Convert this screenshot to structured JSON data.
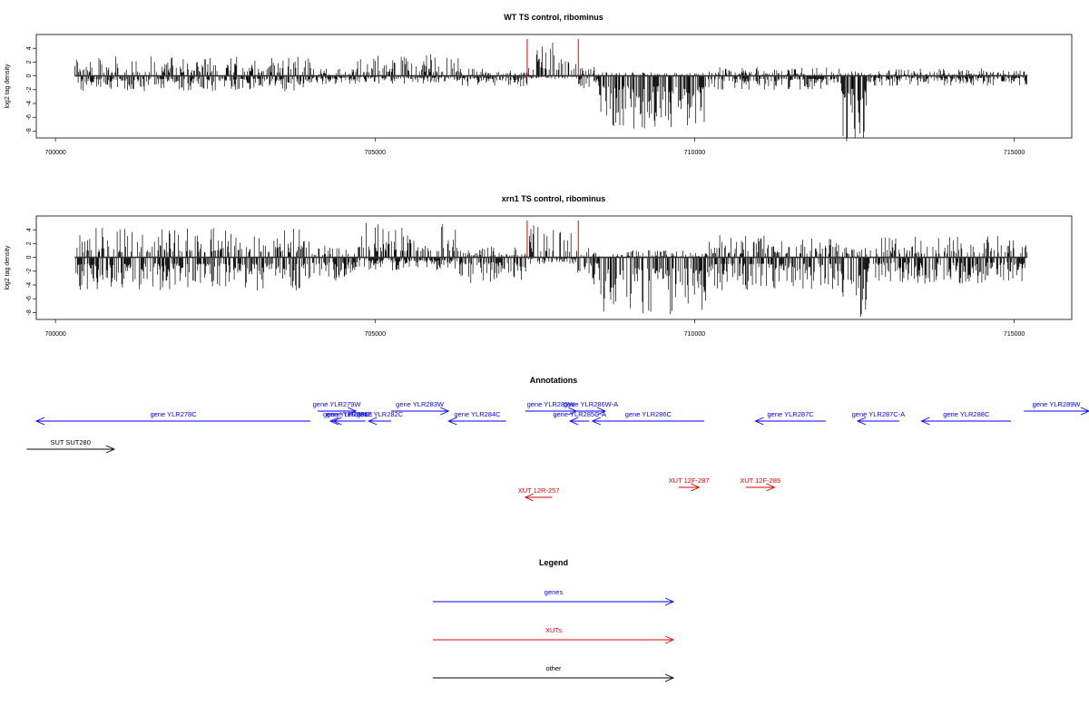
{
  "chart_data": [
    {
      "type": "bar",
      "title": "WT TS control, ribominus",
      "ylabel": "log2 tag density",
      "xlim": [
        699700,
        715900
      ],
      "ylim": [
        -9,
        6
      ],
      "yticks": [
        4,
        2,
        0,
        -2,
        -4,
        -6,
        -8
      ],
      "xticks": [
        700000,
        705000,
        710000,
        715000
      ],
      "markers": [
        707380,
        708180
      ],
      "marker_color": "#e00000",
      "segments": [
        {
          "from": 700300,
          "to": 704000,
          "pos": 1.6,
          "neg": 1.4
        },
        {
          "from": 704000,
          "to": 704700,
          "pos": 0.6,
          "neg": 0.8
        },
        {
          "from": 704700,
          "to": 706300,
          "pos": 1.8,
          "neg": 0.7
        },
        {
          "from": 706300,
          "to": 707400,
          "pos": 0.6,
          "neg": 1.0
        },
        {
          "from": 707400,
          "to": 708150,
          "pos": 2.8,
          "neg": 0.3
        },
        {
          "from": 708150,
          "to": 708500,
          "pos": 0.8,
          "neg": 1.2
        },
        {
          "from": 708500,
          "to": 710200,
          "pos": 0.3,
          "neg": 4.8
        },
        {
          "from": 710200,
          "to": 712300,
          "pos": 0.7,
          "neg": 1.3
        },
        {
          "from": 712300,
          "to": 712700,
          "pos": 0.4,
          "neg": 6.0
        },
        {
          "from": 712700,
          "to": 715200,
          "pos": 0.6,
          "neg": 0.9
        }
      ]
    },
    {
      "type": "bar",
      "title": "xrn1 TS control, ribominus",
      "ylabel": "log2 tag density",
      "xlim": [
        699700,
        715900
      ],
      "ylim": [
        -9,
        6
      ],
      "yticks": [
        4,
        2,
        0,
        -2,
        -4,
        -6,
        -8
      ],
      "xticks": [
        700000,
        705000,
        710000,
        715000
      ],
      "markers": [
        707380,
        708180
      ],
      "marker_color": "#e00000",
      "segments": [
        {
          "from": 700300,
          "to": 704000,
          "pos": 2.4,
          "neg": 3.0
        },
        {
          "from": 704000,
          "to": 704700,
          "pos": 1.0,
          "neg": 2.4
        },
        {
          "from": 704700,
          "to": 706300,
          "pos": 3.0,
          "neg": 1.2
        },
        {
          "from": 706300,
          "to": 707400,
          "pos": 0.9,
          "neg": 2.4
        },
        {
          "from": 707400,
          "to": 708150,
          "pos": 2.6,
          "neg": 0.6
        },
        {
          "from": 708150,
          "to": 708500,
          "pos": 0.8,
          "neg": 2.6
        },
        {
          "from": 708500,
          "to": 710200,
          "pos": 0.6,
          "neg": 5.2
        },
        {
          "from": 710200,
          "to": 712300,
          "pos": 1.8,
          "neg": 3.0
        },
        {
          "from": 712300,
          "to": 712700,
          "pos": 1.0,
          "neg": 5.8
        },
        {
          "from": 712700,
          "to": 715200,
          "pos": 1.8,
          "neg": 2.4
        }
      ]
    }
  ],
  "annotations": {
    "title": "Annotations",
    "genes_color": "#0000ff",
    "xuts_color": "#e00000",
    "other_color": "#000000",
    "items": [
      {
        "label": "gene YLR278C",
        "start": 699700,
        "end": 703990,
        "strand": "-",
        "row": 1,
        "kind": "gene"
      },
      {
        "label": "gene YLR279W",
        "start": 704100,
        "end": 704700,
        "strand": "+",
        "row": 0,
        "kind": "gene"
      },
      {
        "label": "gene YLR280C",
        "start": 704300,
        "end": 704800,
        "strand": "-",
        "row": 1,
        "kind": "gene"
      },
      {
        "label": "gene YLR281C",
        "start": 704350,
        "end": 704850,
        "strand": "-",
        "row": 1,
        "kind": "gene"
      },
      {
        "label": "gene YLR282C",
        "start": 704900,
        "end": 705250,
        "strand": "-",
        "row": 1,
        "kind": "gene"
      },
      {
        "label": "gene YLR283W",
        "start": 705250,
        "end": 706150,
        "strand": "+",
        "row": 0,
        "kind": "gene"
      },
      {
        "label": "gene YLR284C",
        "start": 706150,
        "end": 707050,
        "strand": "-",
        "row": 1,
        "kind": "gene"
      },
      {
        "label": "gene YLR285W",
        "start": 707350,
        "end": 708150,
        "strand": "+",
        "row": 0,
        "kind": "gene"
      },
      {
        "label": "gene YLR286W-A",
        "start": 708150,
        "end": 708600,
        "strand": "+",
        "row": 0,
        "kind": "gene"
      },
      {
        "label": "gene YLR285C-A",
        "start": 708050,
        "end": 708350,
        "strand": "-",
        "row": 1,
        "kind": "gene"
      },
      {
        "label": "gene YLR286C",
        "start": 708400,
        "end": 710150,
        "strand": "-",
        "row": 1,
        "kind": "gene"
      },
      {
        "label": "gene YLR287C",
        "start": 710950,
        "end": 712050,
        "strand": "-",
        "row": 1,
        "kind": "gene"
      },
      {
        "label": "gene YLR287C-A",
        "start": 712550,
        "end": 713200,
        "strand": "-",
        "row": 1,
        "kind": "gene"
      },
      {
        "label": "gene YLR288C",
        "start": 713550,
        "end": 714950,
        "strand": "-",
        "row": 1,
        "kind": "gene"
      },
      {
        "label": "gene YLR289W",
        "start": 715150,
        "end": 716600,
        "strand": "+",
        "row": 0,
        "kind": "gene"
      },
      {
        "label": "SUT SUT280",
        "start": 699550,
        "end": 700920,
        "strand": "+",
        "row": 3,
        "kind": "other"
      },
      {
        "label": "XUT 12R-257",
        "start": 707350,
        "end": 707770,
        "strand": "-",
        "row": 5,
        "kind": "xut"
      },
      {
        "label": "XUT 12F-287",
        "start": 709750,
        "end": 710070,
        "strand": "+",
        "row": 4,
        "kind": "xut"
      },
      {
        "label": "XUT 12F-289",
        "start": 710800,
        "end": 711250,
        "strand": "+",
        "row": 4,
        "kind": "xut"
      }
    ]
  },
  "legend": {
    "title": "Legend",
    "items": [
      {
        "label": "genes",
        "color": "#0000ff"
      },
      {
        "label": "XUTs",
        "color": "#e00000"
      },
      {
        "label": "other",
        "color": "#000000"
      }
    ]
  }
}
